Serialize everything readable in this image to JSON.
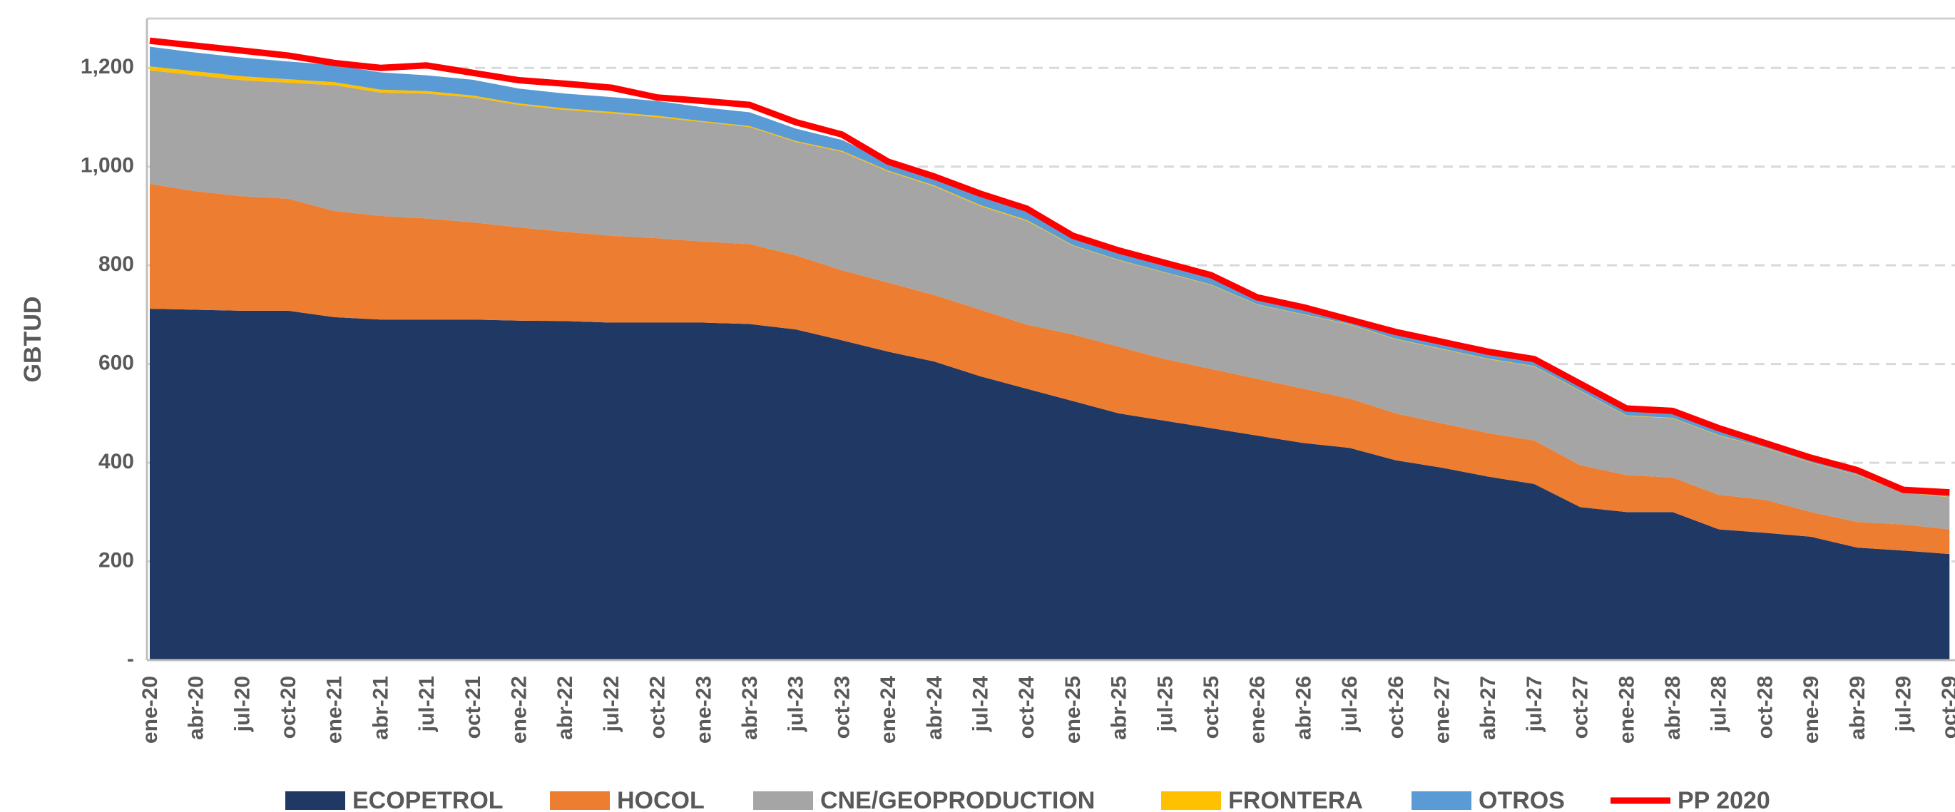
{
  "chart_data": {
    "type": "stacked_area",
    "y_label": "GBTUD",
    "categories": [
      "ene-20",
      "abr-20",
      "jul-20",
      "oct-20",
      "ene-21",
      "abr-21",
      "jul-21",
      "oct-21",
      "ene-22",
      "abr-22",
      "jul-22",
      "oct-22",
      "ene-23",
      "abr-23",
      "jul-23",
      "oct-23",
      "ene-24",
      "abr-24",
      "jul-24",
      "oct-24",
      "ene-25",
      "abr-25",
      "jul-25",
      "oct-25",
      "ene-26",
      "abr-26",
      "jul-26",
      "oct-26",
      "ene-27",
      "abr-27",
      "jul-27",
      "oct-27",
      "ene-28",
      "abr-28",
      "jul-28",
      "oct-28",
      "ene-29",
      "abr-29",
      "jul-29",
      "oct-29"
    ],
    "ylim": [
      0,
      1300
    ],
    "yticks": [
      {
        "value": 0,
        "label": "-"
      },
      200,
      400,
      600,
      800,
      {
        "value": 1000,
        "label": "1,000"
      },
      {
        "value": 1200,
        "label": "1,200"
      }
    ],
    "grid": true,
    "legend": "bottom",
    "series": [
      {
        "name": "ECOPETROL",
        "color": "#203864",
        "values": [
          712,
          710,
          708,
          708,
          695,
          690,
          690,
          690,
          688,
          687,
          684,
          684,
          684,
          681,
          670,
          648,
          625,
          605,
          575,
          550,
          525,
          500,
          485,
          470,
          455,
          440,
          430,
          405,
          390,
          372,
          357,
          310,
          300,
          300,
          265,
          258,
          250,
          228,
          222,
          215
        ]
      },
      {
        "name": "HOCOL",
        "color": "#ed7d31",
        "values": [
          253,
          240,
          232,
          227,
          215,
          210,
          205,
          197,
          189,
          181,
          176,
          171,
          164,
          162,
          150,
          142,
          140,
          135,
          135,
          130,
          135,
          135,
          125,
          120,
          115,
          110,
          100,
          95,
          90,
          88,
          88,
          85,
          75,
          70,
          70,
          67,
          50,
          52,
          53,
          50
        ]
      },
      {
        "name": "CNE/GEOPRODUCTION",
        "color": "#a5a5a5",
        "values": [
          230,
          235,
          235,
          235,
          255,
          250,
          253,
          253,
          248,
          247,
          248,
          245,
          242,
          237,
          230,
          240,
          225,
          220,
          210,
          210,
          180,
          175,
          175,
          170,
          150,
          150,
          150,
          150,
          150,
          150,
          150,
          150,
          120,
          120,
          120,
          105,
          100,
          95,
          65,
          65
        ]
      },
      {
        "name": "FRONTERA",
        "color": "#ffc000",
        "values": [
          8,
          8,
          8,
          7,
          6,
          6,
          5,
          4,
          3,
          3,
          3,
          3,
          2,
          2,
          2,
          2,
          2,
          2,
          2,
          2,
          1,
          1,
          1,
          1,
          1,
          1,
          1,
          1,
          1,
          1,
          1,
          1,
          1,
          1,
          1,
          1,
          1,
          1,
          1,
          1
        ]
      },
      {
        "name": "OTROS",
        "color": "#5b9bd5",
        "values": [
          40,
          38,
          38,
          36,
          35,
          35,
          32,
          32,
          30,
          30,
          30,
          30,
          28,
          28,
          25,
          22,
          18,
          18,
          18,
          16,
          15,
          15,
          15,
          14,
          12,
          12,
          12,
          12,
          10,
          10,
          10,
          10,
          10,
          10,
          10,
          10,
          8,
          8,
          6,
          6
        ]
      },
      {
        "name": "PP 2020",
        "color": "#ff0000",
        "type": "line",
        "values": [
          1255,
          1245,
          1235,
          1225,
          1210,
          1200,
          1205,
          1190,
          1175,
          1168,
          1160,
          1140,
          1133,
          1125,
          1090,
          1065,
          1010,
          980,
          945,
          915,
          860,
          830,
          805,
          780,
          735,
          715,
          690,
          665,
          645,
          625,
          610,
          560,
          510,
          505,
          470,
          440,
          410,
          385,
          345,
          340
        ]
      }
    ]
  }
}
